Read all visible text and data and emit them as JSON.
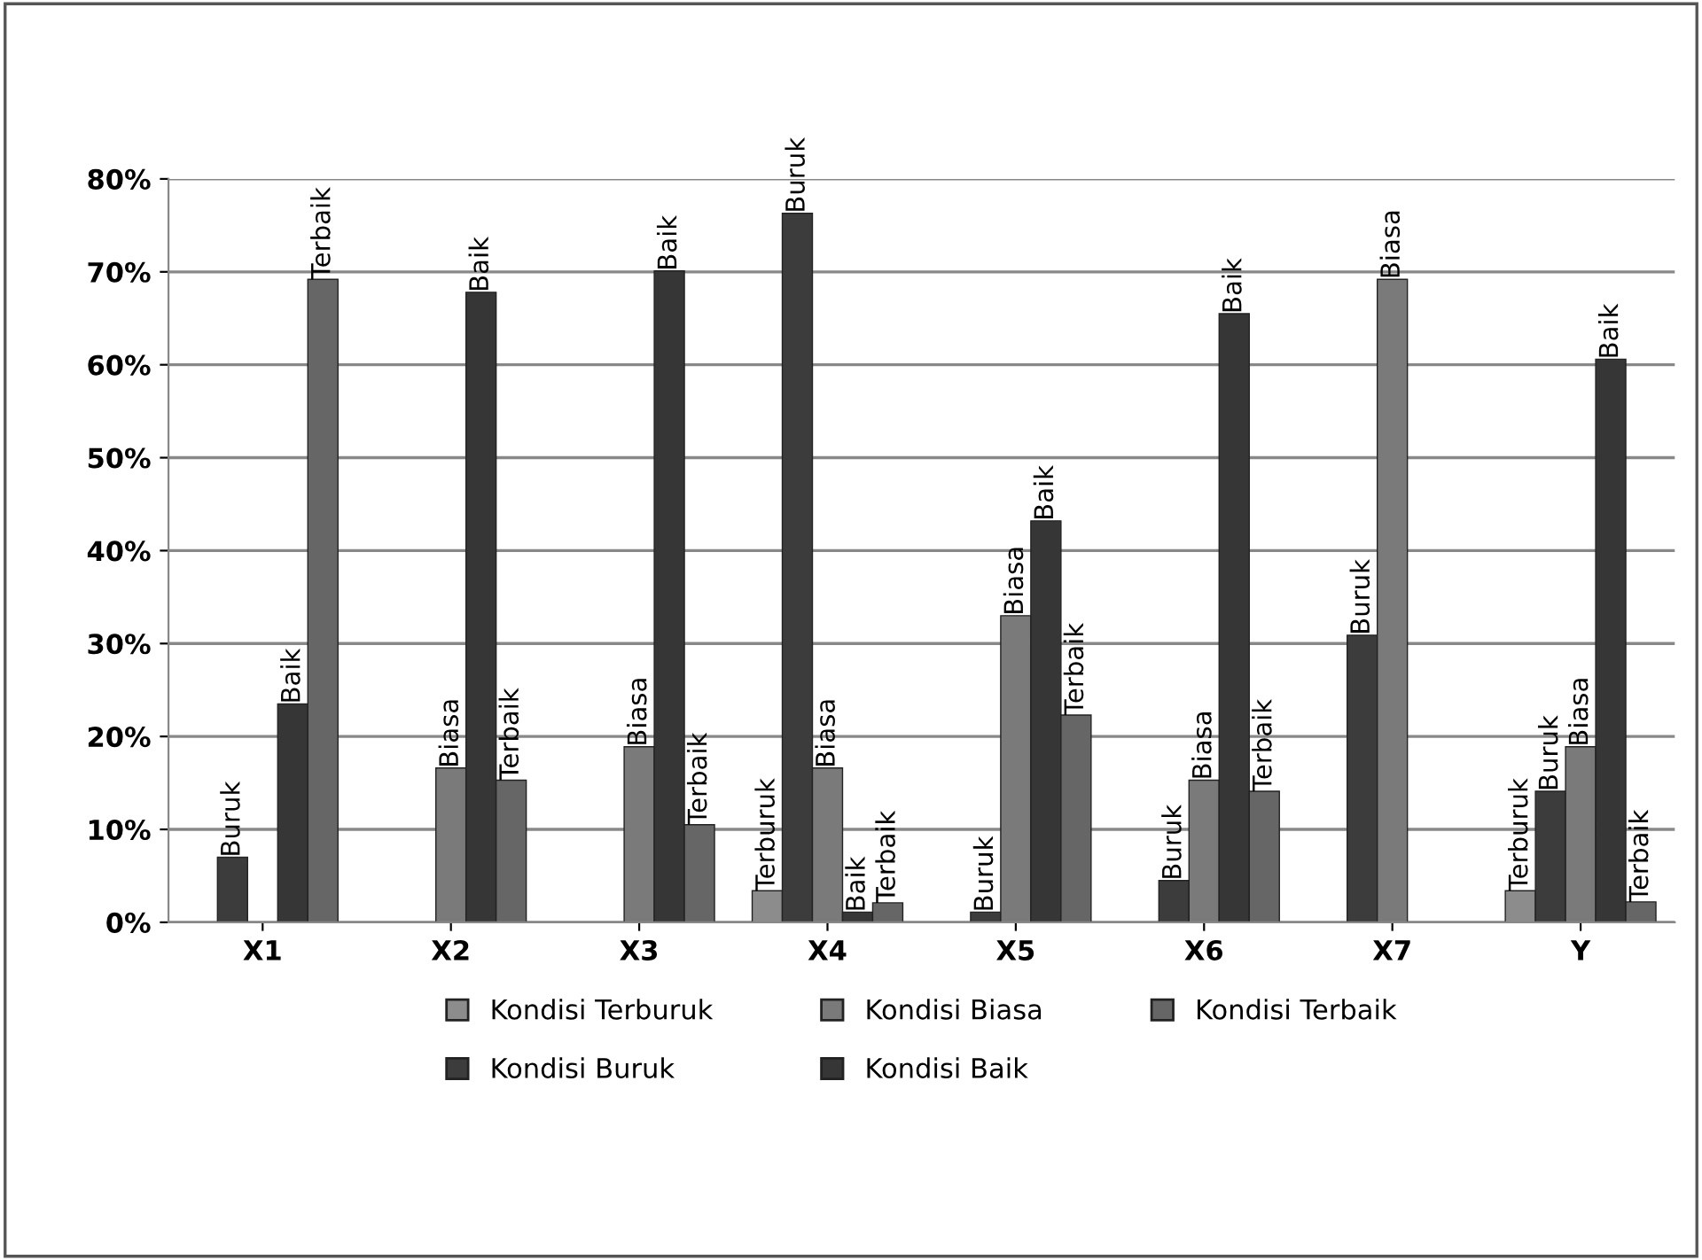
{
  "chart_data": {
    "type": "bar",
    "categories": [
      "X1",
      "X2",
      "X3",
      "X4",
      "X5",
      "X6",
      "X7",
      "Y"
    ],
    "ylim": [
      0,
      0.8
    ],
    "yticks": [
      {
        "value": 0,
        "label": "0%"
      },
      {
        "value": 0.1,
        "label": "10%"
      },
      {
        "value": 0.2,
        "label": "20%"
      },
      {
        "value": 0.3,
        "label": "30%"
      },
      {
        "value": 0.4,
        "label": "40%"
      },
      {
        "value": 0.5,
        "label": "50%"
      },
      {
        "value": 0.6,
        "label": "60%"
      },
      {
        "value": 0.7,
        "label": "70%"
      },
      {
        "value": 0.8,
        "label": "80%"
      }
    ],
    "grid": "y",
    "legend": "bottom",
    "series": [
      {
        "name": "Kondisi Terburuk",
        "color": "#8c8c8c",
        "values": [
          null,
          null,
          null,
          0.034,
          null,
          null,
          null,
          0.034
        ],
        "value_labels": [
          null,
          null,
          null,
          "Terburuk",
          null,
          null,
          null,
          "Terburuk"
        ]
      },
      {
        "name": "Kondisi Buruk",
        "color": "#3c3c3c",
        "values": [
          0.07,
          null,
          null,
          0.763,
          0.011,
          0.045,
          0.309,
          0.141
        ],
        "value_labels": [
          "Buruk",
          null,
          null,
          "Buruk",
          "Buruk",
          "Buruk",
          "Buruk",
          "Buruk"
        ]
      },
      {
        "name": "Kondisi Biasa",
        "color": "#7a7a7a",
        "values": [
          null,
          0.166,
          0.189,
          0.166,
          0.33,
          0.153,
          0.692,
          0.189
        ],
        "value_labels": [
          null,
          "Biasa",
          "Biasa",
          "Biasa",
          "Biasa",
          "Biasa",
          "Biasa",
          "Biasa"
        ]
      },
      {
        "name": "Kondisi Baik",
        "color": "#363636",
        "values": [
          0.235,
          0.678,
          0.701,
          0.011,
          0.432,
          0.655,
          null,
          0.606
        ],
        "value_labels": [
          "Baik",
          "Baik",
          "Baik",
          "Baik",
          "Baik",
          "Baik",
          null,
          "Baik"
        ]
      },
      {
        "name": "Kondisi Terbaik",
        "color": "#666666",
        "values": [
          0.692,
          0.153,
          0.105,
          0.021,
          0.223,
          0.141,
          null,
          0.022
        ],
        "value_labels": [
          "Terbaik",
          "Terbaik",
          "Terbaik",
          "Terbaik",
          "Terbaik",
          "Terbaik",
          null,
          "Terbaik"
        ]
      }
    ]
  }
}
